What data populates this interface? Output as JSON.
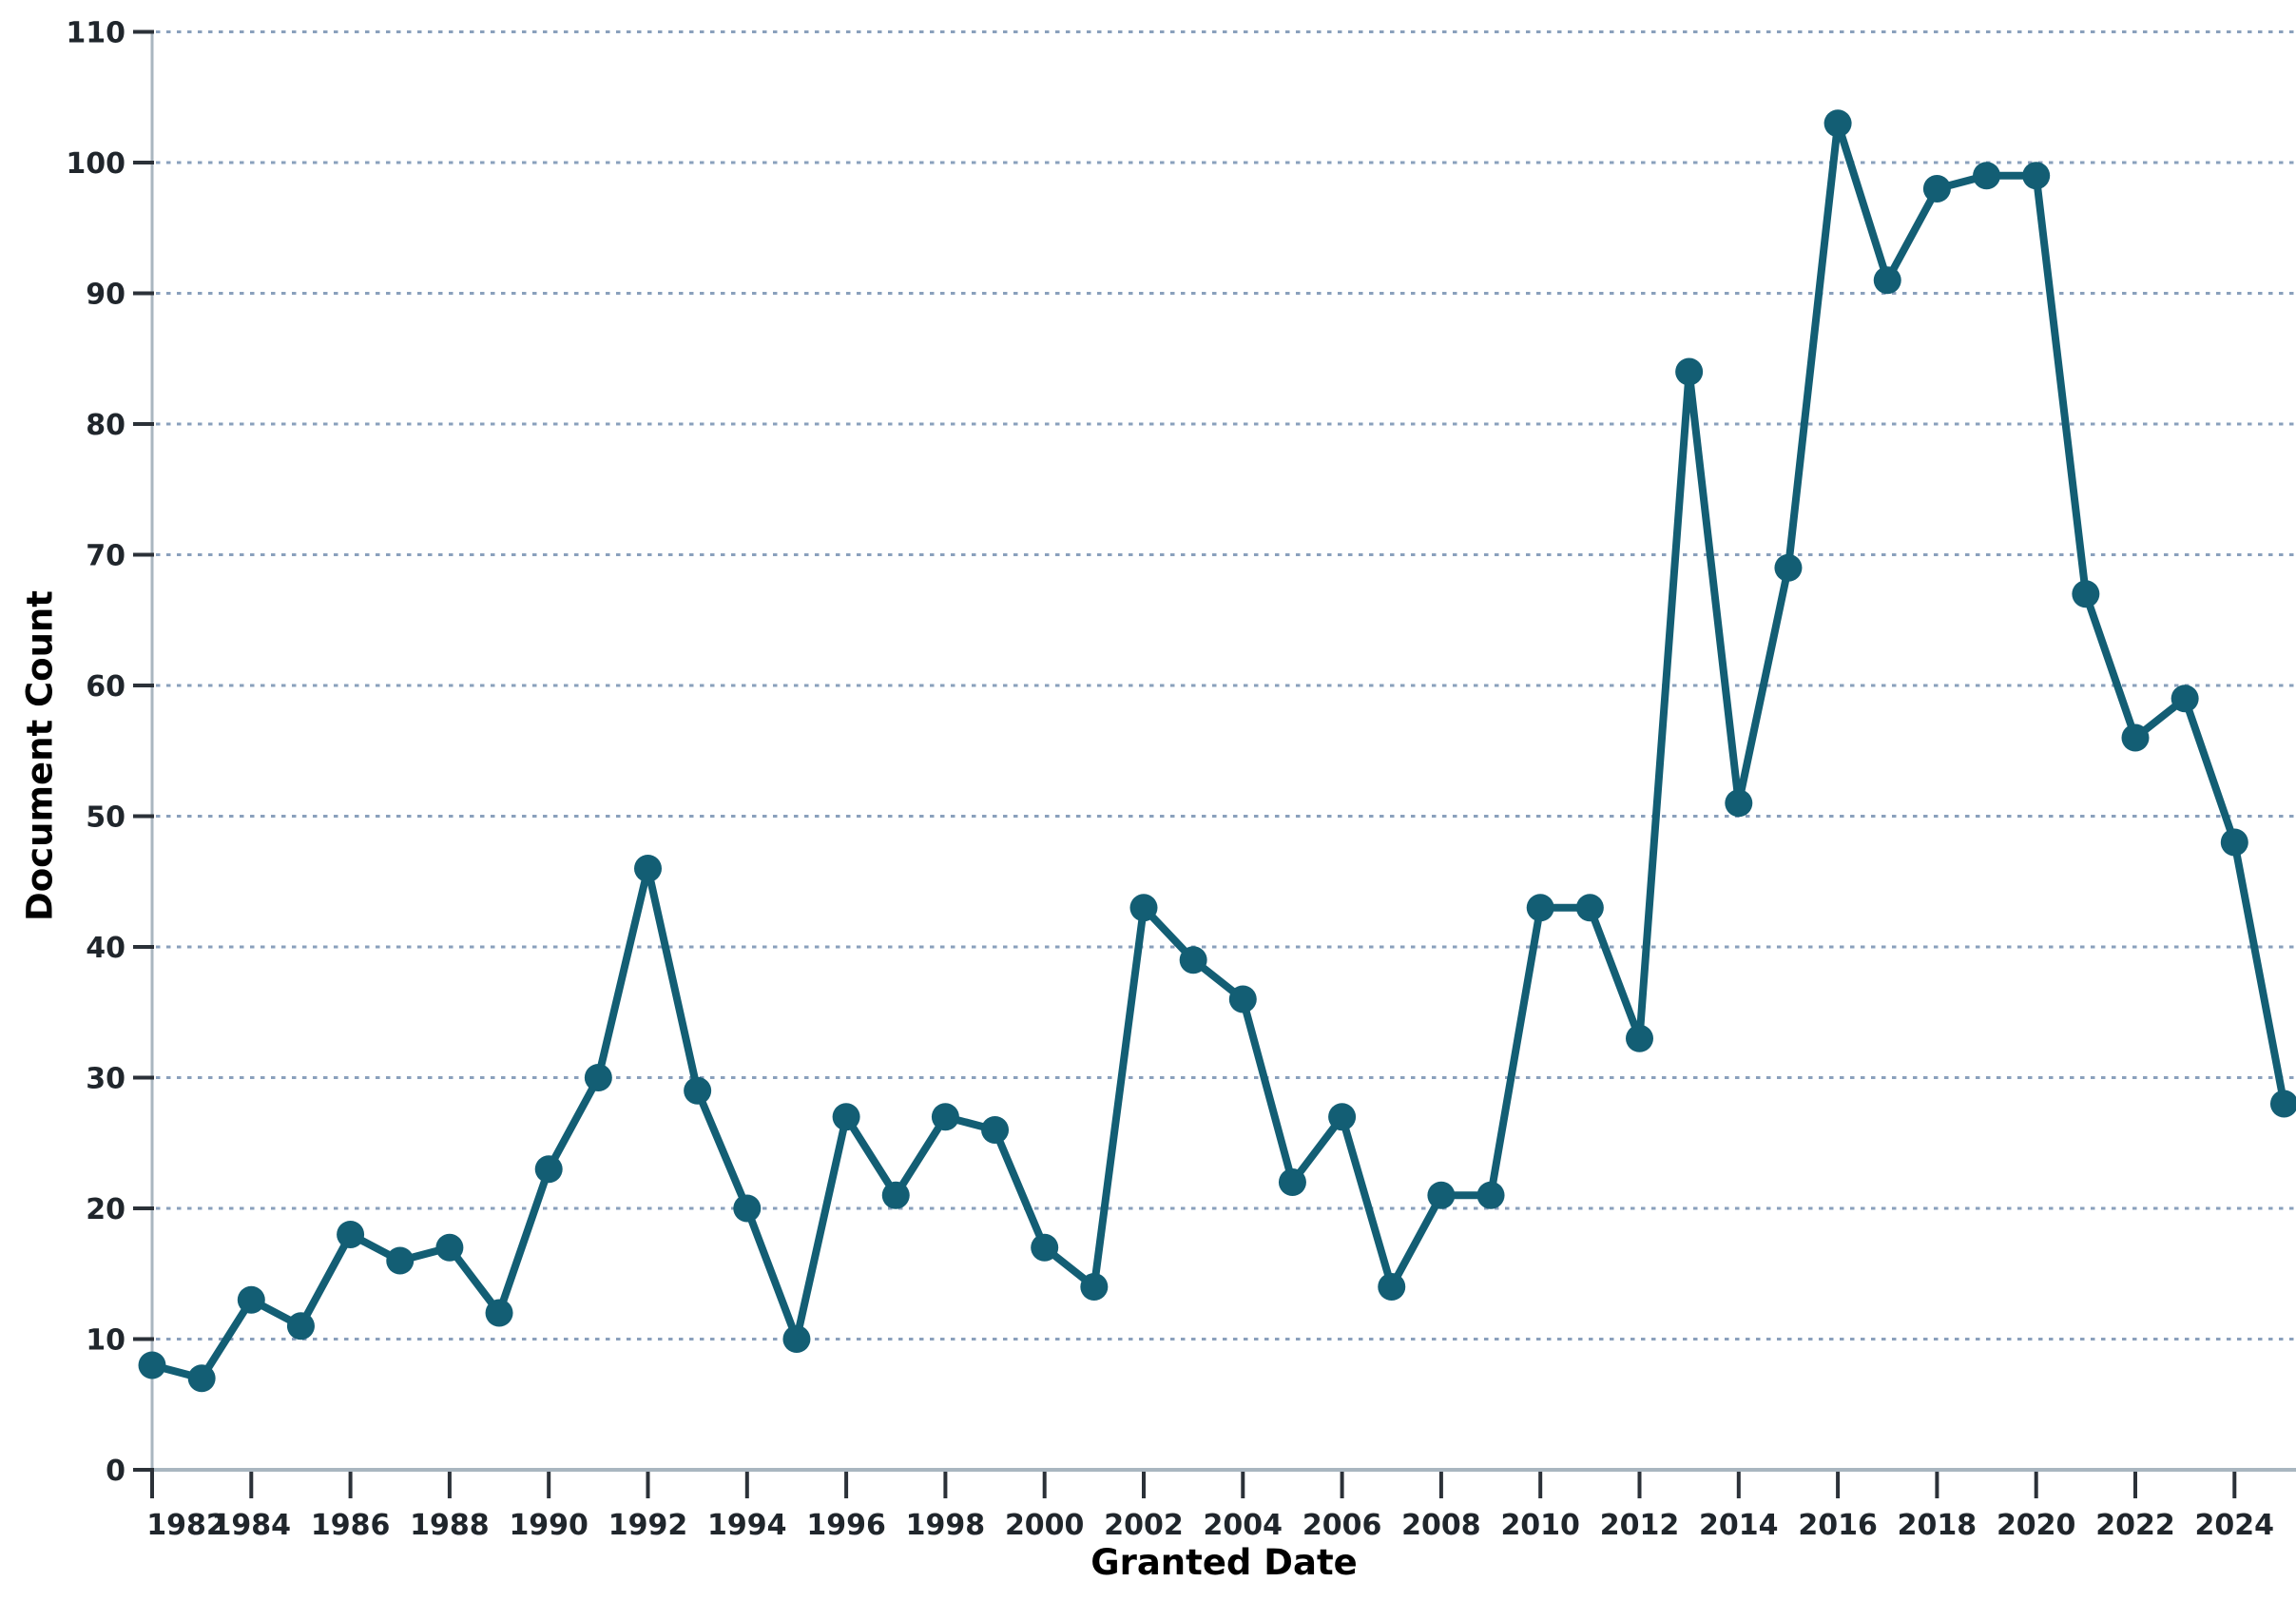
{
  "chart_data": {
    "type": "line",
    "title": "",
    "xlabel": "Granted Date",
    "ylabel": "Document Count",
    "x": [
      1982,
      1983,
      1984,
      1985,
      1986,
      1987,
      1988,
      1989,
      1990,
      1991,
      1992,
      1993,
      1994,
      1995,
      1996,
      1997,
      1998,
      1999,
      2000,
      2001,
      2002,
      2003,
      2004,
      2005,
      2006,
      2007,
      2008,
      2009,
      2010,
      2011,
      2012,
      2013,
      2014,
      2015,
      2016,
      2017,
      2018,
      2019,
      2020,
      2021,
      2022,
      2023,
      2024,
      2025
    ],
    "series": [
      {
        "name": "Document Count",
        "values": [
          8,
          7,
          13,
          11,
          18,
          16,
          17,
          12,
          23,
          30,
          46,
          29,
          20,
          10,
          27,
          21,
          27,
          26,
          17,
          14,
          43,
          39,
          36,
          22,
          27,
          14,
          21,
          21,
          43,
          43,
          33,
          84,
          51,
          69,
          103,
          91,
          98,
          99,
          99,
          67,
          56,
          59,
          48,
          28
        ]
      }
    ],
    "ylim": [
      0,
      110
    ],
    "ytick_values": [
      0,
      10,
      20,
      30,
      40,
      50,
      60,
      70,
      80,
      90,
      100,
      110
    ],
    "xtick_values": [
      1982,
      1984,
      1986,
      1988,
      1990,
      1992,
      1994,
      1996,
      1998,
      2000,
      2002,
      2004,
      2006,
      2008,
      2010,
      2012,
      2014,
      2016,
      2018,
      2020,
      2022,
      2024
    ],
    "grid": "horizontal-dashed",
    "legend": "none",
    "marker": "circle",
    "colors": {
      "line": "#135e74",
      "marker": "#135e74",
      "gridline": "#8aa0bc",
      "axis_line": "#a9b6c0",
      "tick_mark": "#2b3138",
      "tick_label": "#20262c",
      "axis_title": "#1c3a4b"
    }
  }
}
